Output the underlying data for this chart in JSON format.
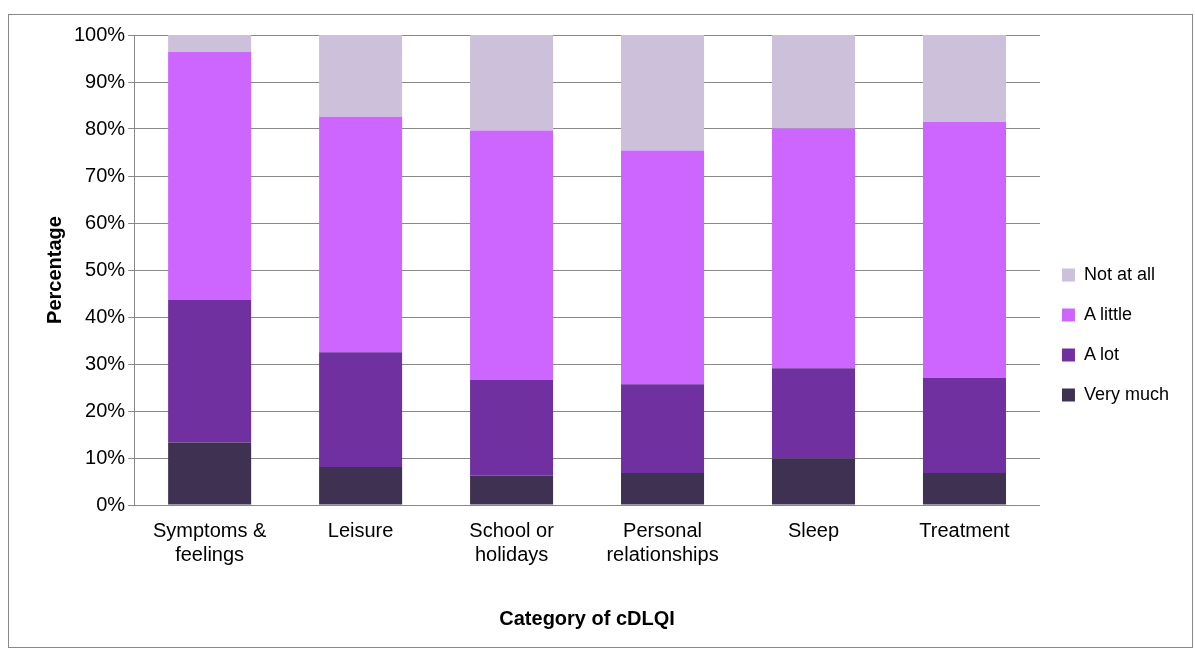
{
  "chart_data": {
    "type": "bar",
    "stacked": true,
    "xlabel": "Category of cDLQI",
    "ylabel": "Percentage",
    "categories": [
      "Symptoms & feelings",
      "Leisure",
      "School or holidays",
      "Personal relationships",
      "Sleep",
      "Treatment"
    ],
    "series": [
      {
        "name": "Very much",
        "color": "#3f3151",
        "values": [
          13.3,
          8.1,
          6.3,
          6.8,
          9.9,
          6.8
        ]
      },
      {
        "name": "A lot",
        "color": "#7030a0",
        "values": [
          30.3,
          24.4,
          20.3,
          18.9,
          19.2,
          20.3
        ]
      },
      {
        "name": "A little",
        "color": "#cc66ff",
        "values": [
          52.8,
          50.1,
          53.1,
          49.7,
          51.0,
          54.4
        ]
      },
      {
        "name": "Not at all",
        "color": "#ccc0da",
        "values": [
          3.6,
          17.4,
          20.3,
          24.6,
          19.9,
          18.5
        ]
      }
    ],
    "ylim": [
      0,
      100
    ],
    "yticks": [
      {
        "value": 0,
        "label": "0%"
      },
      {
        "value": 10,
        "label": "10%"
      },
      {
        "value": 20,
        "label": "20%"
      },
      {
        "value": 30,
        "label": "30%"
      },
      {
        "value": 40,
        "label": "40%"
      },
      {
        "value": 50,
        "label": "50%"
      },
      {
        "value": 60,
        "label": "60%"
      },
      {
        "value": 70,
        "label": "70%"
      },
      {
        "value": 80,
        "label": "80%"
      },
      {
        "value": 90,
        "label": "90%"
      },
      {
        "value": 100,
        "label": "100%"
      }
    ],
    "grid": "y",
    "legend": "right"
  }
}
